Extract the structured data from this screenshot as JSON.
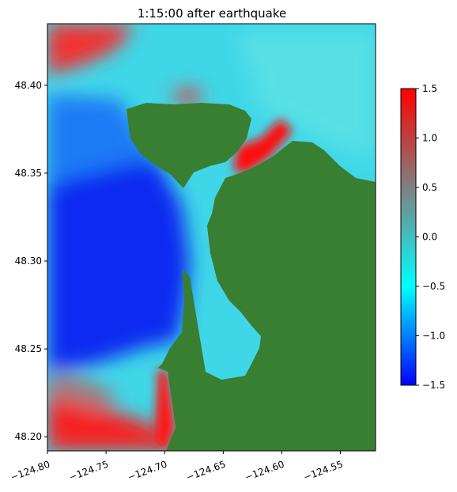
{
  "chart_data": {
    "type": "heatmap",
    "title": "1:15:00 after earthquake",
    "xlabel": "",
    "ylabel": "",
    "xlim": [
      -124.8,
      -124.52
    ],
    "ylim": [
      48.192,
      48.435
    ],
    "x_ticks": [
      -124.8,
      -124.75,
      -124.7,
      -124.65,
      -124.6,
      -124.55
    ],
    "x_tick_labels": [
      "−124.80",
      "−124.75",
      "−124.70",
      "−124.65",
      "−124.60",
      "−124.55"
    ],
    "y_ticks": [
      48.2,
      48.25,
      48.3,
      48.35,
      48.4
    ],
    "y_tick_labels": [
      "48.20",
      "48.25",
      "48.30",
      "48.35",
      "48.40"
    ],
    "colorbar": {
      "vmin": -1.5,
      "vmax": 1.5,
      "ticks": [
        -1.5,
        -1.0,
        -0.5,
        0.0,
        0.5,
        1.0,
        1.5
      ],
      "tick_labels": [
        "−1.5",
        "−1.0",
        "−0.5",
        "0.0",
        "0.5",
        "1.0",
        "1.5"
      ],
      "colors": [
        "#0000ff",
        "#00ffff",
        "#808080",
        "#ff0000"
      ]
    },
    "land_color": "#387f32",
    "grid": false
  }
}
